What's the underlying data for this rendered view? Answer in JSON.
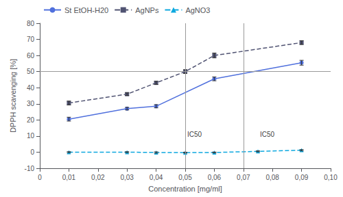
{
  "chart_data": {
    "type": "line",
    "xlabel": "Concentration [mg/ml]",
    "ylabel": "DPPH scavenging [%]",
    "series": [
      {
        "name": "St EtOH-H20",
        "marker": "circle",
        "line_style": "solid",
        "x": [
          0.01,
          0.03,
          0.04,
          0.06,
          0.09
        ],
        "values": [
          20.5,
          27.0,
          28.5,
          45.5,
          55.5
        ],
        "errors": [
          1.2,
          0.8,
          1.0,
          1.2,
          1.5
        ]
      },
      {
        "name": "AgNPs",
        "marker": "square",
        "line_style": "dashed",
        "x": [
          0.01,
          0.03,
          0.04,
          0.05,
          0.06,
          0.09
        ],
        "values": [
          30.5,
          36.0,
          43.0,
          50.0,
          60.0,
          68.0
        ],
        "errors": [
          1.2,
          0.8,
          1.0,
          1.2,
          1.5,
          1.2
        ]
      },
      {
        "name": "AgNO3",
        "marker": "triangle",
        "line_style": "dashed",
        "x": [
          0.01,
          0.03,
          0.04,
          0.05,
          0.06,
          0.075,
          0.09
        ],
        "values": [
          0.0,
          0.0,
          -0.2,
          -0.3,
          -0.2,
          0.5,
          1.2
        ],
        "errors": [
          0.3,
          0.3,
          0.4,
          0.3,
          0.3,
          0.3,
          0.4
        ]
      }
    ],
    "hlines": [
      50
    ],
    "vlines": [
      0.05,
      0.075
    ],
    "annotations": [
      {
        "text": "IC50",
        "x": 0.05,
        "y": 7
      },
      {
        "text": "IC50",
        "x": 0.075,
        "y": 7
      }
    ],
    "xlim": [
      0,
      0.1
    ],
    "xticks": [
      0,
      {
        "value": 0.01,
        "label": "0,01"
      },
      {
        "value": 0.02,
        "label": "0,02"
      },
      {
        "value": 0.03,
        "label": "0,03"
      },
      {
        "value": 0.04,
        "label": "0,04"
      },
      {
        "value": 0.05,
        "label": "0,05"
      },
      {
        "value": 0.06,
        "label": "0,06"
      },
      {
        "value": 0.07,
        "label": "0,07"
      },
      {
        "value": 0.08,
        "label": "0,08"
      },
      {
        "value": 0.09,
        "label": "0,09"
      },
      {
        "value": 0.1,
        "label": "0,10"
      }
    ],
    "ylim": [
      -10,
      80
    ],
    "yticks": [
      -10,
      0,
      10,
      20,
      30,
      40,
      50,
      60,
      70,
      80
    ],
    "grid": false,
    "legend": "upper left"
  }
}
